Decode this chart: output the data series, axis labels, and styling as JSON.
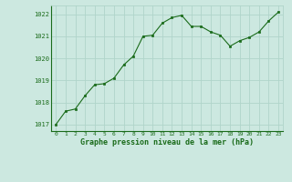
{
  "x": [
    0,
    1,
    2,
    3,
    4,
    5,
    6,
    7,
    8,
    9,
    10,
    11,
    12,
    13,
    14,
    15,
    16,
    17,
    18,
    19,
    20,
    21,
    22,
    23
  ],
  "y": [
    1017.0,
    1017.6,
    1017.7,
    1018.3,
    1018.8,
    1018.85,
    1019.1,
    1019.7,
    1020.1,
    1021.0,
    1021.05,
    1021.6,
    1021.85,
    1021.95,
    1021.45,
    1021.45,
    1021.2,
    1021.05,
    1020.55,
    1020.8,
    1020.95,
    1021.2,
    1021.7,
    1022.1
  ],
  "line_color": "#1a6b1a",
  "marker_color": "#1a6b1a",
  "bg_color": "#cce8e0",
  "grid_color": "#b0d4ca",
  "xlabel": "Graphe pression niveau de la mer (hPa)",
  "xlabel_color": "#1a6b1a",
  "tick_color": "#1a6b1a",
  "ylim": [
    1016.7,
    1022.4
  ],
  "yticks": [
    1017,
    1018,
    1019,
    1020,
    1021,
    1022
  ],
  "xticks": [
    0,
    1,
    2,
    3,
    4,
    5,
    6,
    7,
    8,
    9,
    10,
    11,
    12,
    13,
    14,
    15,
    16,
    17,
    18,
    19,
    20,
    21,
    22,
    23
  ],
  "xtick_labels": [
    "0",
    "1",
    "2",
    "3",
    "4",
    "5",
    "6",
    "7",
    "8",
    "9",
    "10",
    "11",
    "12",
    "13",
    "14",
    "15",
    "16",
    "17",
    "18",
    "19",
    "20",
    "21",
    "22",
    "23"
  ],
  "axis_bg": "#cce8e0"
}
